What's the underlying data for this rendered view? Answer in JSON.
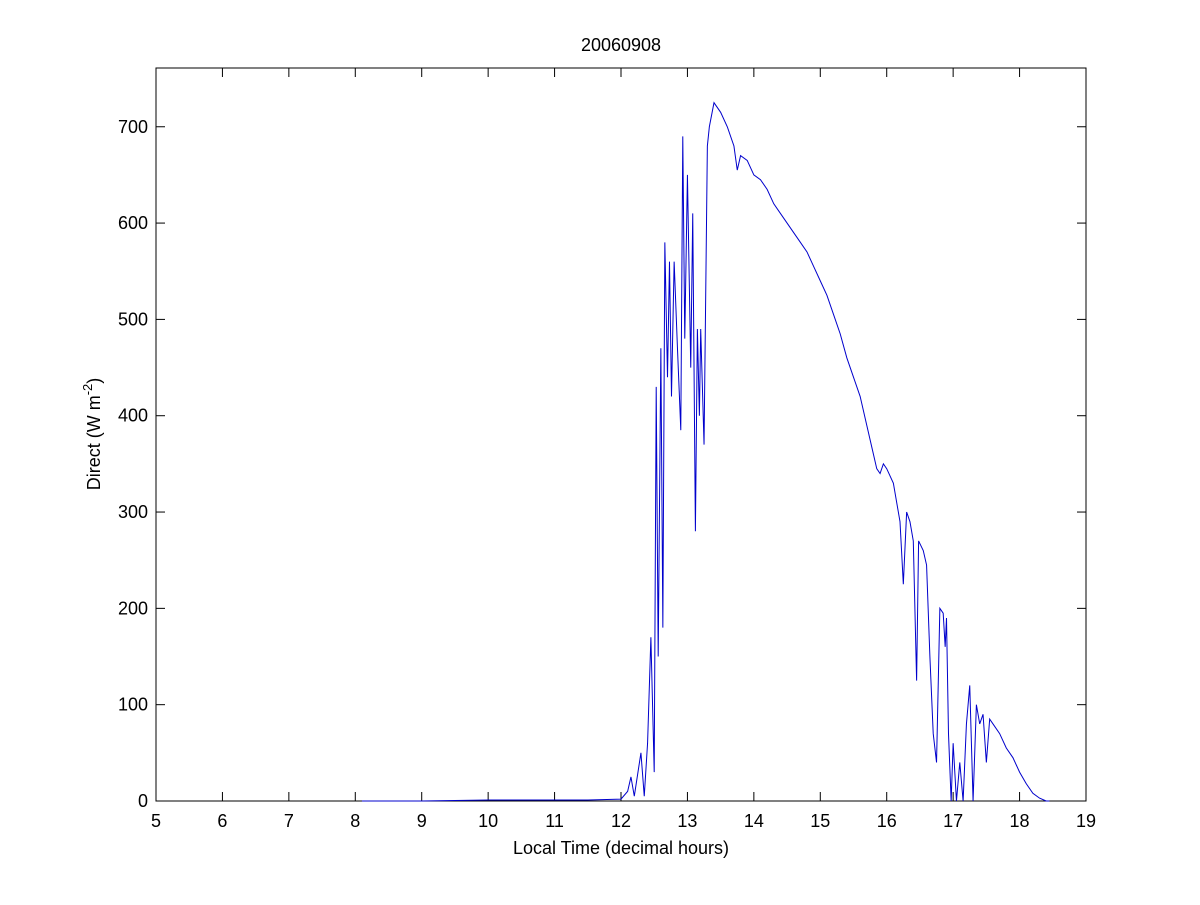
{
  "chart_data": {
    "type": "line",
    "title": "20060908",
    "x_label": "Local Time (decimal hours)",
    "y_label": "Direct (W m",
    "y_label_sup": "-2",
    "y_label_end": ")",
    "xlim": [
      5,
      19
    ],
    "xticks": [
      5,
      6,
      7,
      8,
      9,
      10,
      11,
      12,
      13,
      14,
      15,
      16,
      17,
      18,
      19
    ],
    "ylim": [
      0,
      761
    ],
    "yticks": [
      0,
      100,
      200,
      300,
      400,
      500,
      600,
      700
    ],
    "grid": false,
    "series": [
      {
        "color": "#0000cc",
        "x": [
          8.1,
          9,
          10,
          11,
          11.5,
          12.0,
          12.1,
          12.15,
          12.2,
          12.3,
          12.35,
          12.4,
          12.45,
          12.5,
          12.53,
          12.56,
          12.6,
          12.63,
          12.66,
          12.7,
          12.73,
          12.76,
          12.8,
          12.85,
          12.9,
          12.93,
          12.96,
          13.0,
          13.05,
          13.08,
          13.12,
          13.15,
          13.18,
          13.2,
          13.25,
          13.3,
          13.33,
          13.4,
          13.5,
          13.6,
          13.7,
          13.75,
          13.8,
          13.9,
          14.0,
          14.1,
          14.2,
          14.3,
          14.4,
          14.5,
          14.6,
          14.7,
          14.8,
          14.9,
          15.0,
          15.1,
          15.2,
          15.3,
          15.4,
          15.5,
          15.6,
          15.7,
          15.8,
          15.85,
          15.9,
          15.95,
          16.0,
          16.1,
          16.2,
          16.25,
          16.3,
          16.35,
          16.4,
          16.45,
          16.48,
          16.55,
          16.6,
          16.65,
          16.7,
          16.75,
          16.8,
          16.85,
          16.88,
          16.9,
          16.93,
          16.97,
          17.0,
          17.05,
          17.1,
          17.15,
          17.2,
          17.25,
          17.3,
          17.35,
          17.4,
          17.45,
          17.5,
          17.55,
          17.6,
          17.7,
          17.8,
          17.9,
          18.0,
          18.1,
          18.2,
          18.3,
          18.4,
          18.45
        ],
        "values": [
          0,
          0,
          1,
          1,
          1,
          2,
          10,
          25,
          5,
          50,
          5,
          60,
          170,
          30,
          430,
          150,
          470,
          180,
          580,
          440,
          560,
          420,
          560,
          470,
          385,
          690,
          480,
          650,
          450,
          610,
          280,
          490,
          400,
          490,
          370,
          680,
          700,
          725,
          715,
          700,
          680,
          655,
          670,
          665,
          650,
          645,
          635,
          620,
          610,
          600,
          590,
          580,
          570,
          555,
          540,
          525,
          505,
          485,
          460,
          440,
          420,
          390,
          360,
          345,
          340,
          350,
          345,
          330,
          290,
          225,
          300,
          290,
          270,
          125,
          270,
          260,
          245,
          150,
          70,
          40,
          200,
          195,
          160,
          190,
          70,
          0,
          60,
          0,
          40,
          0,
          80,
          120,
          0,
          100,
          80,
          90,
          40,
          85,
          80,
          70,
          55,
          45,
          30,
          18,
          8,
          3,
          0,
          0
        ]
      }
    ]
  }
}
